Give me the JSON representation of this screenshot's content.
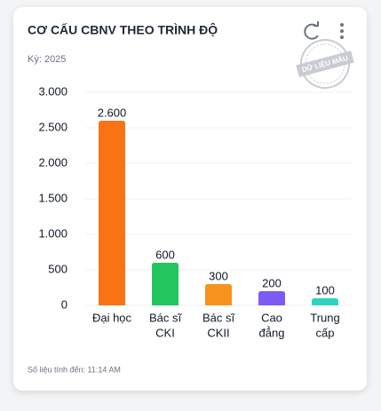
{
  "chart_data": {
    "type": "bar",
    "title": "CƠ CẤU CBNV THEO TRÌNH ĐỘ",
    "subtitle": "Kỳ: 2025",
    "categories": [
      [
        "Đại học"
      ],
      [
        "Bác sĩ",
        "CKI"
      ],
      [
        "Bác sĩ",
        "CKII"
      ],
      [
        "Cao",
        "đẳng"
      ],
      [
        "Trung",
        "cấp"
      ]
    ],
    "values": [
      2600,
      600,
      300,
      200,
      100
    ],
    "value_labels": [
      "2.600",
      "600",
      "300",
      "200",
      "100"
    ],
    "colors": [
      "#f97316",
      "#22c55e",
      "#f7931e",
      "#7c5cf5",
      "#2dd4bf"
    ],
    "ylim": [
      0,
      3000
    ],
    "yticks": [
      0,
      500,
      {
        "value": 1000,
        "label": "1.000"
      },
      {
        "value": 1500,
        "label": "1.500"
      },
      {
        "value": 2000,
        "label": "2.000"
      },
      {
        "value": 2500,
        "label": "2.500"
      },
      {
        "value": 3000,
        "label": "3.000"
      }
    ],
    "grid": true,
    "stamp": "DỮ LIỆU MẪU",
    "footer": "Số liệu tính đến: 11:14 AM"
  }
}
